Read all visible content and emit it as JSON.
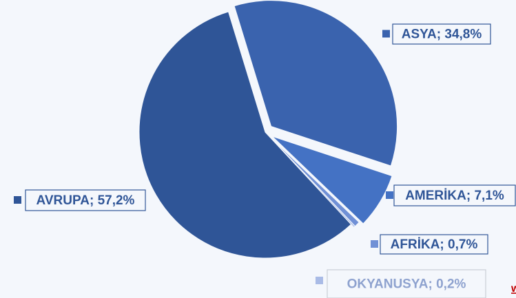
{
  "chart_data": {
    "type": "pie",
    "categories": [
      "ASYA",
      "AMERİKA",
      "AFRİKA",
      "OKYANUSYA",
      "AVRUPA"
    ],
    "values": [
      34.8,
      7.1,
      0.7,
      0.2,
      57.2
    ],
    "value_labels": [
      "34,8%",
      "7,1%",
      "0,7%",
      "0,2%",
      "57,2%"
    ],
    "label_separator": "; ",
    "colors": [
      "#3a63ae",
      "#4472c4",
      "#7090d6",
      "#a9bbe6",
      "#2f5597"
    ],
    "footer": "w"
  }
}
